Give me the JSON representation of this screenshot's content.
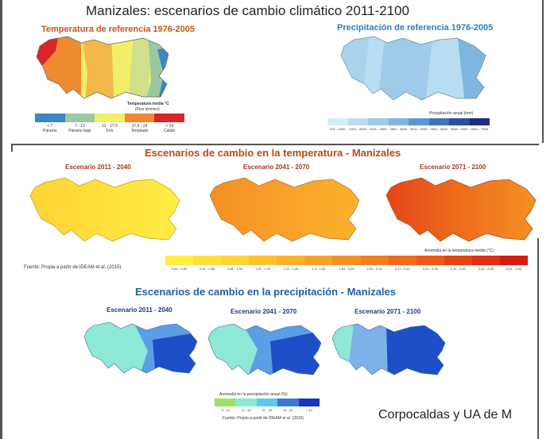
{
  "title": "Manizales: escenarios de cambio climático 2011-2100",
  "credit": "Corpocaldas y UA de M",
  "reference_temperature": {
    "title": "Temperatura de referencia 1976-2005",
    "legend_title": "Temperatura media °C",
    "legend_subtitle": "(Piso térmico)",
    "classes": [
      {
        "range": "< 7",
        "label": "Páramo",
        "color": "#3b86c4"
      },
      {
        "range": "7 - 12",
        "label": "Páramo bajo",
        "color": "#9bc8a0"
      },
      {
        "range": "12 - 17,5",
        "label": "Frío",
        "color": "#f2ee6a"
      },
      {
        "range": "17,5 - 24",
        "label": "Templado",
        "color": "#f08a32"
      },
      {
        "range": "> 24",
        "label": "Cálido",
        "color": "#d8262a"
      }
    ]
  },
  "reference_precipitation": {
    "title": "Precipitación de referencia 1976-2005",
    "legend_title": "Precipitación anual (mm)",
    "classes": [
      {
        "range": "221 - 1000",
        "color": "#d4ecf6"
      },
      {
        "range": "1001 - 2000",
        "color": "#b8dcf0"
      },
      {
        "range": "2001 - 2500",
        "color": "#9dcbe9"
      },
      {
        "range": "2501 - 3000",
        "color": "#7fb6df"
      },
      {
        "range": "3001 - 4000",
        "color": "#5c97cf"
      },
      {
        "range": "4001 - 5000",
        "color": "#3f72bb"
      },
      {
        "range": "5001 - 6000",
        "color": "#2a4fa0"
      },
      {
        "range": "6001 - 7000",
        "color": "#1a2f80"
      }
    ]
  },
  "temperature_scenarios": {
    "title": "Escenarios de cambio en la temperatura - Manizales",
    "scenarios": [
      "Escenario 2011 - 2040",
      "Escenario 2041 - 2070",
      "Escenario 2071 - 2100"
    ],
    "source": "Fuente: Propia a partir de IDEAM et al. (2015)",
    "legend_title": "Anomalía en la temperatura media (°C)",
    "classes": [
      {
        "range": "0,00 - 0,50",
        "color": "#ffee44"
      },
      {
        "range": "0,51 - 0,80",
        "color": "#ffe03c"
      },
      {
        "range": "0,81 - 1,00",
        "color": "#ffd236"
      },
      {
        "range": "1,01 - 1,20",
        "color": "#fdc231"
      },
      {
        "range": "1,21 - 1,40",
        "color": "#fbb22c"
      },
      {
        "range": "1,4 - 1,60",
        "color": "#f8a128"
      },
      {
        "range": "1,81 - 2,00",
        "color": "#f59024"
      },
      {
        "range": "2,01 - 2,10",
        "color": "#f27f20"
      },
      {
        "range": "2,11 - 2,20",
        "color": "#ee6d1c"
      },
      {
        "range": "2,21 - 2,30",
        "color": "#ea5a19"
      },
      {
        "range": "2,31 - 2,40",
        "color": "#e44617"
      },
      {
        "range": "2,41 - 2,50",
        "color": "#dd3115"
      },
      {
        "range": "2,51 - 2,60",
        "color": "#d41e14"
      }
    ]
  },
  "precipitation_scenarios": {
    "title": "Escenarios de cambio en la precipitación - Manizales",
    "scenarios": [
      "Escenario 2011 - 2040",
      "Escenario 2041 - 2070",
      "Escenario 2071 - 2100"
    ],
    "legend_title": "Anomalía en la precipitación anual (%)",
    "source": "Fuente: Propia a partir de IDEAM et al. (2015)",
    "classes": [
      {
        "range": "-9 - 10",
        "color": "#9be06a"
      },
      {
        "range": "11 - 20",
        "color": "#8ee8d6"
      },
      {
        "range": "21 - 30",
        "color": "#5ec8ee"
      },
      {
        "range": "31 - 40",
        "color": "#3e78d6"
      },
      {
        "range": "> 40",
        "color": "#1436b8"
      }
    ]
  }
}
